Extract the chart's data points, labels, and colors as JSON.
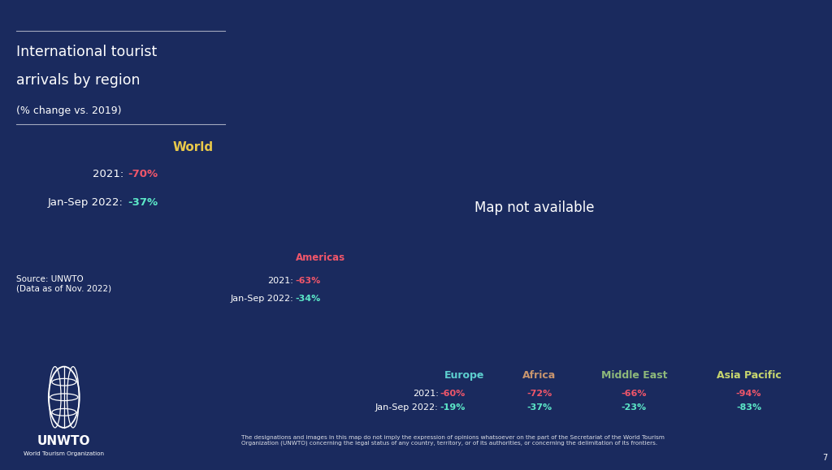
{
  "bg_color": "#1a2a5e",
  "title_line1": "International tourist",
  "title_line2": "arrivals by region",
  "subtitle": "(% change vs. 2019)",
  "world_label": "World",
  "world_2021_label": "2021:",
  "world_2021": "-70%",
  "world_2022_label": "Jan-Sep 2022:",
  "world_2022": "-37%",
  "source_text": "Source: UNWTO\n(Data as of Nov. 2022)",
  "disclaimer": "The designations and images in this map do not imply the expression of opinions whatsoever on the part of the Secretariat of the World Tourism\nOrganization (UNWTO) concerning the legal status of any country, territory, or of its authorities, or concerning the delimitation of its frontiers.",
  "page_num": "7",
  "regions": {
    "Americas": {
      "color": "#f0566a",
      "label_color": "#f0566a",
      "val_2021": "-63%",
      "val_2022": "-34%"
    },
    "Europe": {
      "color": "#5dcfcf",
      "label_color": "#5dcfcf",
      "val_2021": "-60%",
      "val_2022": "-19%"
    },
    "Africa": {
      "color": "#c8956e",
      "label_color": "#c8956e",
      "val_2021": "-72%",
      "val_2022": "-37%"
    },
    "Middle East": {
      "color": "#8db87a",
      "label_color": "#8db87a",
      "val_2021": "-66%",
      "val_2022": "-23%"
    },
    "Asia Pacific": {
      "color": "#c8d66e",
      "label_color": "#c8d66e",
      "val_2021": "-94%",
      "val_2022": "-83%"
    }
  },
  "world_label_color": "#e8c84a",
  "val_2021_color": "#f0566a",
  "val_2022_color": "#5ce8c8",
  "text_color": "#ffffff",
  "line_color": "#5dcfcf"
}
